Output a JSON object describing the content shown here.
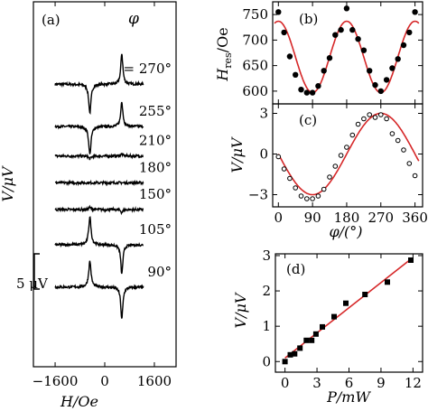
{
  "chart_data": [
    {
      "id": "a",
      "type": "line",
      "panel_label": "(a)",
      "xlabel": "H/Oe",
      "ylabel": "V/μV",
      "xlim": [
        -2300,
        2300
      ],
      "x_ticks": [
        -1600,
        0,
        1600
      ],
      "phi_symbol": "φ",
      "scale_bar_label": "5 μV",
      "scale_bar_uV": 5,
      "series": [
        {
          "label": "= 270°",
          "baseline_uV": 22.8,
          "dip_x": -480,
          "dip_uV": -4.1,
          "peak_x": 550,
          "peak_uV": 4.4
        },
        {
          "label": "255°",
          "baseline_uV": 16.8,
          "dip_x": -480,
          "dip_uV": -4.0,
          "peak_x": 550,
          "peak_uV": 3.6
        },
        {
          "label": "210°",
          "baseline_uV": 12.6,
          "dip_x": -480,
          "dip_uV": -0.4,
          "peak_x": 550,
          "peak_uV": 0.3
        },
        {
          "label": "180°",
          "baseline_uV": 8.8,
          "dip_x": -480,
          "dip_uV": 0.0,
          "peak_x": 550,
          "peak_uV": 0.0
        },
        {
          "label": "150°",
          "baseline_uV": 5.0,
          "dip_x": -480,
          "dip_uV": 0.3,
          "peak_x": 550,
          "peak_uV": -0.4
        },
        {
          "label": "105°",
          "baseline_uV": 0.0,
          "dip_x": -480,
          "dip_uV": 4.0,
          "peak_x": 550,
          "peak_uV": -4.2
        },
        {
          "label": "90°",
          "baseline_uV": -6.0,
          "dip_x": -480,
          "dip_uV": 3.7,
          "peak_x": 550,
          "peak_uV": -4.6
        }
      ]
    },
    {
      "id": "b",
      "type": "scatter",
      "panel_label": "(b)",
      "ylabel": "H_res/Oe",
      "xlim": [
        -15,
        380
      ],
      "ylim": [
        575,
        775
      ],
      "y_ticks": [
        600,
        650,
        700,
        750
      ],
      "x_ticks": [
        0,
        90,
        180,
        270,
        360
      ],
      "points": [
        [
          0,
          755
        ],
        [
          15,
          715
        ],
        [
          30,
          668
        ],
        [
          45,
          632
        ],
        [
          60,
          603
        ],
        [
          75,
          597
        ],
        [
          90,
          597
        ],
        [
          105,
          610
        ],
        [
          120,
          640
        ],
        [
          135,
          665
        ],
        [
          150,
          710
        ],
        [
          165,
          720
        ],
        [
          180,
          762
        ],
        [
          195,
          720
        ],
        [
          210,
          702
        ],
        [
          225,
          680
        ],
        [
          240,
          640
        ],
        [
          255,
          612
        ],
        [
          270,
          600
        ],
        [
          285,
          622
        ],
        [
          300,
          645
        ],
        [
          315,
          663
        ],
        [
          330,
          690
        ],
        [
          345,
          715
        ],
        [
          360,
          755
        ]
      ],
      "fit": {
        "center": 667,
        "amplitude": 70,
        "period_deg": 180,
        "phase_deg": 0,
        "color": "#d62728"
      }
    },
    {
      "id": "c",
      "type": "scatter",
      "panel_label": "(c)",
      "xlabel": "φ/(°)",
      "ylabel": "V/μV",
      "xlim": [
        -15,
        380
      ],
      "ylim": [
        -3.9,
        3.7
      ],
      "y_ticks": [
        -3,
        0,
        3
      ],
      "x_ticks": [
        0,
        90,
        180,
        270,
        360
      ],
      "x_tick_labels": [
        "0",
        "90",
        "180",
        "270",
        "360"
      ],
      "points": [
        [
          0,
          -0.2
        ],
        [
          15,
          -1.1
        ],
        [
          30,
          -1.8
        ],
        [
          45,
          -2.5
        ],
        [
          60,
          -3.1
        ],
        [
          75,
          -3.3
        ],
        [
          90,
          -3.3
        ],
        [
          105,
          -3.1
        ],
        [
          120,
          -2.6
        ],
        [
          135,
          -1.7
        ],
        [
          150,
          -0.9
        ],
        [
          165,
          -0.1
        ],
        [
          180,
          0.5
        ],
        [
          195,
          1.4
        ],
        [
          210,
          2.2
        ],
        [
          225,
          2.6
        ],
        [
          240,
          2.9
        ],
        [
          255,
          2.7
        ],
        [
          270,
          2.9
        ],
        [
          285,
          2.6
        ],
        [
          300,
          1.5
        ],
        [
          315,
          1.0
        ],
        [
          330,
          0.3
        ],
        [
          345,
          -0.7
        ],
        [
          360,
          -1.6
        ]
      ],
      "fit": {
        "amplitude": 3.0,
        "phase_deg": 0,
        "color": "#d62728"
      }
    },
    {
      "id": "d",
      "type": "scatter",
      "panel_label": "(d)",
      "xlabel": "P/mW",
      "ylabel": "V/μV",
      "xlim": [
        -0.9,
        12.9
      ],
      "ylim": [
        -0.3,
        3.05
      ],
      "y_ticks": [
        0,
        1,
        2,
        3
      ],
      "x_ticks": [
        0,
        3,
        6,
        9,
        12
      ],
      "points": [
        [
          0.0,
          0.0
        ],
        [
          0.5,
          0.19
        ],
        [
          0.9,
          0.22
        ],
        [
          1.4,
          0.38
        ],
        [
          2.0,
          0.6
        ],
        [
          2.5,
          0.6
        ],
        [
          2.9,
          0.78
        ],
        [
          3.5,
          0.98
        ],
        [
          4.6,
          1.27
        ],
        [
          5.7,
          1.65
        ],
        [
          7.5,
          1.9
        ],
        [
          9.6,
          2.25
        ],
        [
          11.8,
          2.87
        ]
      ],
      "fit": {
        "x0": 0,
        "y0": 0.1,
        "x1": 11.8,
        "y1": 2.9,
        "color": "#d62728"
      }
    }
  ]
}
